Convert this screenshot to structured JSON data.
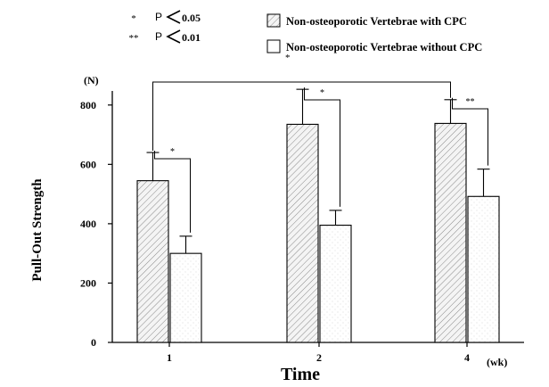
{
  "chart_data": {
    "type": "bar",
    "categories": [
      "1",
      "2",
      "4"
    ],
    "series": [
      {
        "name": "Non-osteoporotic Vertebrae with CPC",
        "values": [
          545,
          735,
          738
        ],
        "errors": [
          95,
          118,
          80
        ],
        "pattern": "hatched"
      },
      {
        "name": "Non-osteoporotic Vertebrae without CPC",
        "values": [
          300,
          395,
          492
        ],
        "errors": [
          58,
          50,
          92
        ],
        "pattern": "light"
      }
    ],
    "xlabel": "Time",
    "x_unit": "(wk)",
    "ylabel": "Pull-Out Strength",
    "y_unit": "(N)",
    "ylim": [
      0,
      900
    ],
    "yticks": [
      0,
      200,
      400,
      600,
      800
    ],
    "grid": false,
    "legend_position": "top-right",
    "significance_legend": [
      {
        "symbol": "*",
        "text": "P<0.05"
      },
      {
        "symbol": "**",
        "text": "P<0.01"
      }
    ],
    "annotations": [
      {
        "type": "bracket",
        "label": "*",
        "between": "1 with CPC vs 1 without CPC"
      },
      {
        "type": "bracket",
        "label": "*",
        "between": "2 with CPC vs 2 without CPC"
      },
      {
        "type": "bracket",
        "label": "**",
        "between": "4 with CPC vs 4 without CPC"
      },
      {
        "type": "bracket",
        "label": "",
        "between": "1 with CPC vs 4 with CPC"
      }
    ],
    "stray_mark": "*"
  }
}
